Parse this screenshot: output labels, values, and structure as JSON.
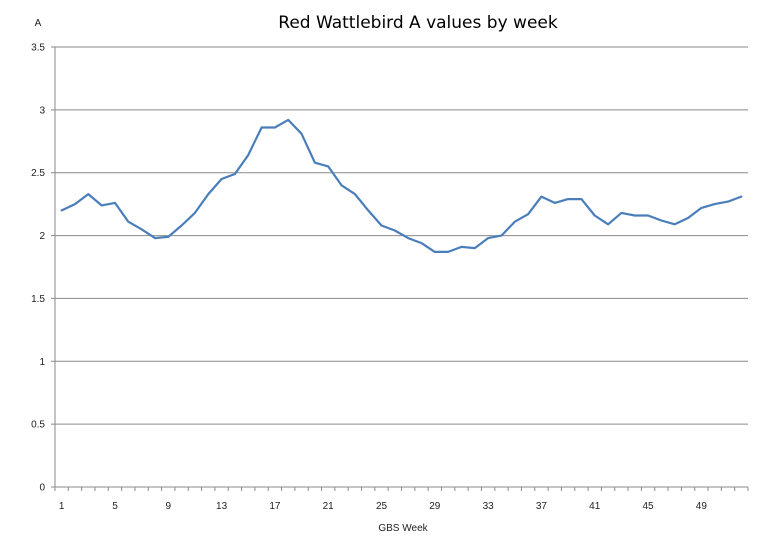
{
  "chart_data": {
    "type": "line",
    "title": "Red Wattlebird A values by week",
    "xlabel": "GBS Week",
    "ylabel": "A",
    "ylim": [
      0,
      3.5
    ],
    "yticks": [
      "0",
      "0.5",
      "1",
      "1.5",
      "2",
      "2.5",
      "3",
      "3.5"
    ],
    "ytick_values": [
      0,
      0.5,
      1,
      1.5,
      2,
      2.5,
      3,
      3.5
    ],
    "xlim": [
      1,
      52
    ],
    "xticks": [
      "1",
      "5",
      "9",
      "13",
      "17",
      "21",
      "25",
      "29",
      "33",
      "37",
      "41",
      "45",
      "49"
    ],
    "xtick_values": [
      1,
      5,
      9,
      13,
      17,
      21,
      25,
      29,
      33,
      37,
      41,
      45,
      49
    ],
    "grid": true,
    "series_color": "#4a7ebb",
    "series": [
      {
        "x": [
          1,
          2,
          3,
          4,
          5,
          6,
          7,
          8,
          9,
          10,
          11,
          12,
          13,
          14,
          15,
          16,
          17,
          18,
          19,
          20,
          21,
          22,
          23,
          24,
          25,
          26,
          27,
          28,
          29,
          30,
          31,
          32,
          33,
          34,
          35,
          36,
          37,
          38,
          39,
          40,
          41,
          42,
          43,
          44,
          45,
          46,
          47,
          48,
          49,
          50,
          51,
          52
        ],
        "values": [
          2.2,
          2.25,
          2.33,
          2.24,
          2.26,
          2.11,
          2.05,
          1.98,
          1.99,
          2.08,
          2.18,
          2.33,
          2.45,
          2.49,
          2.64,
          2.86,
          2.86,
          2.92,
          2.81,
          2.58,
          2.55,
          2.4,
          2.33,
          2.2,
          2.08,
          2.04,
          1.98,
          1.94,
          1.87,
          1.87,
          1.91,
          1.9,
          1.98,
          2.0,
          2.11,
          2.17,
          2.31,
          2.26,
          2.29,
          2.29,
          2.16,
          2.09,
          2.18,
          2.16,
          2.16,
          2.12,
          2.09,
          2.14,
          2.22,
          2.25,
          2.27,
          2.31
        ]
      }
    ]
  }
}
